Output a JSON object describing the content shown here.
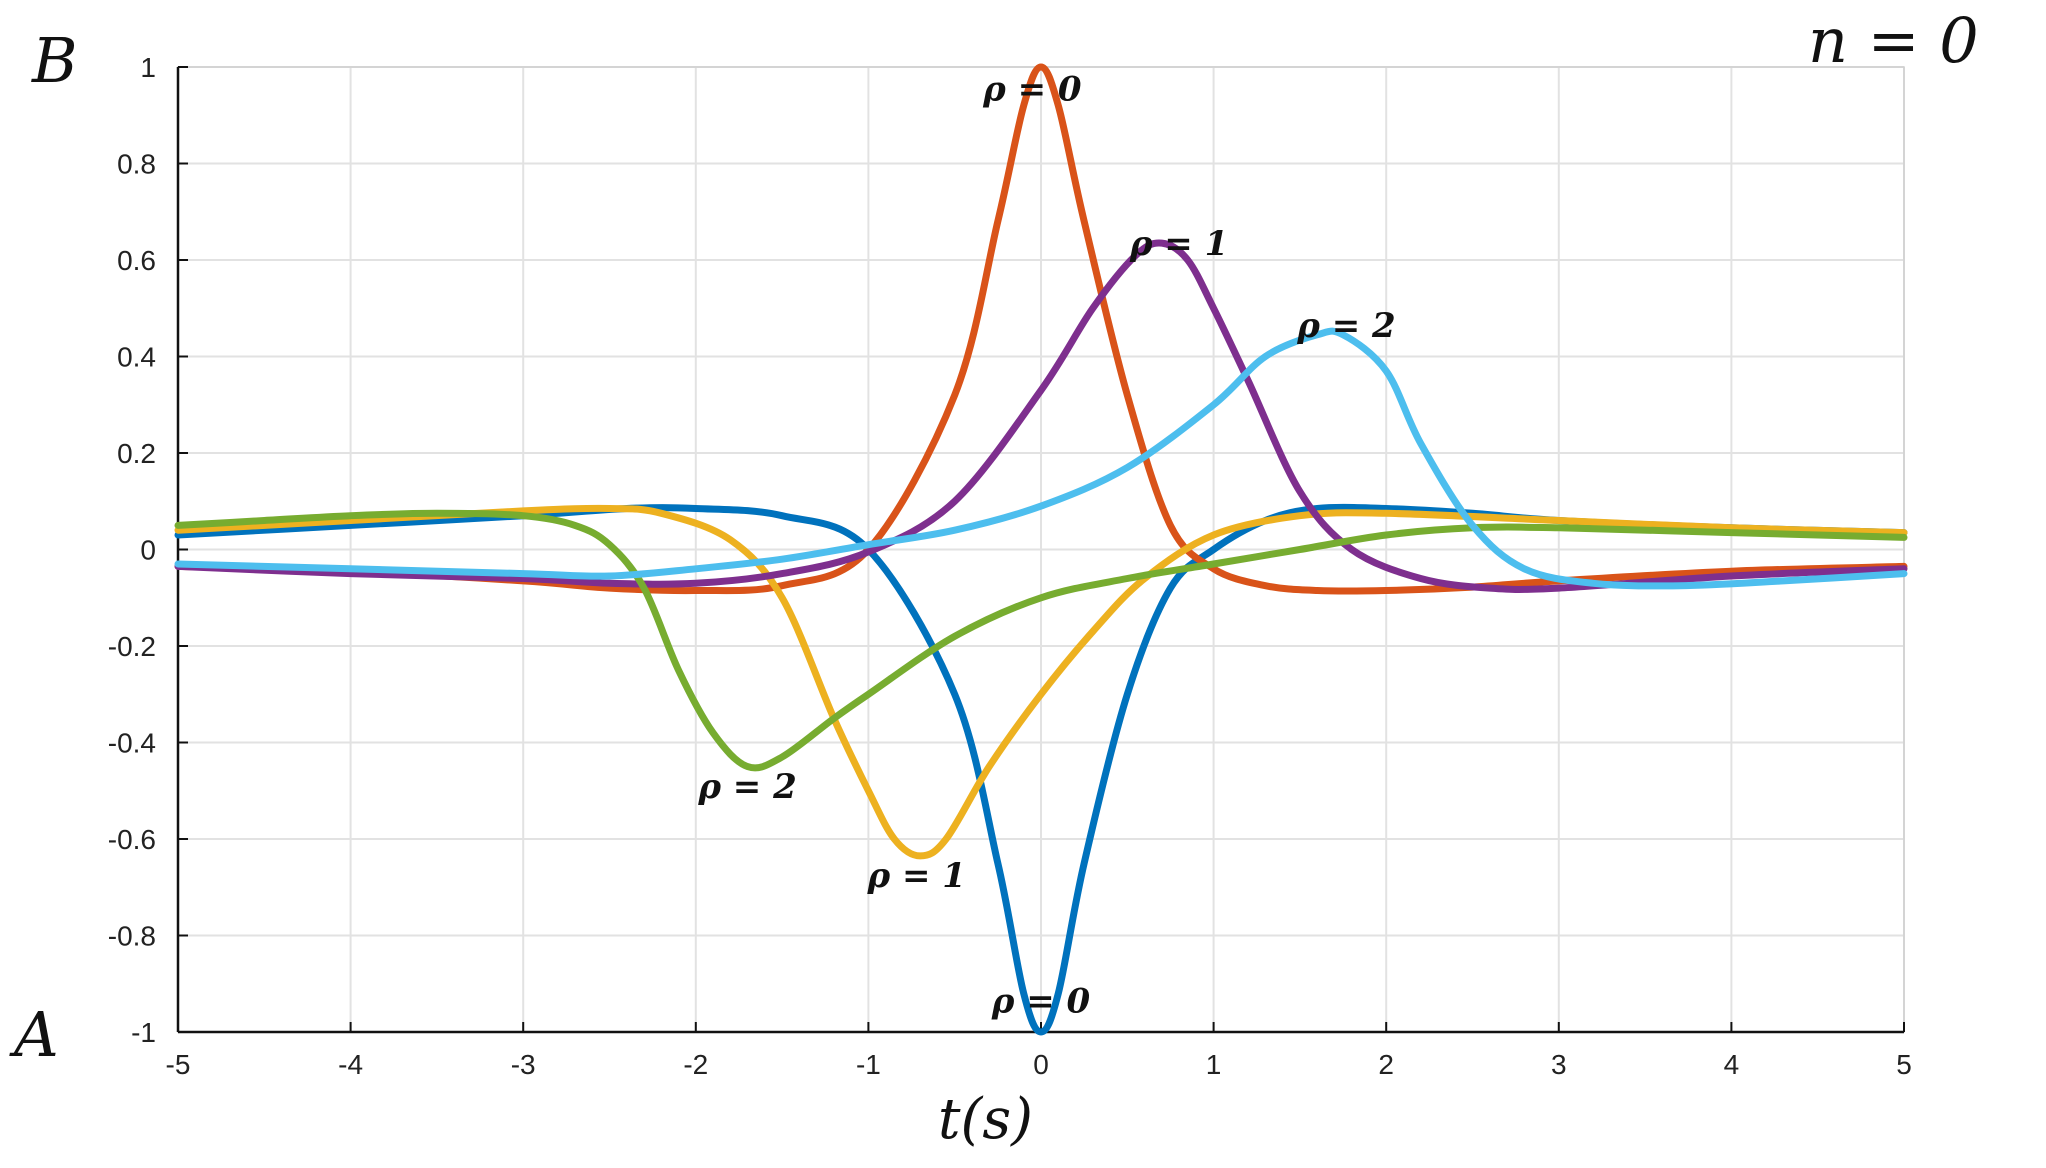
{
  "chart_data": {
    "type": "line",
    "title": "n = 0",
    "xlabel": "t(s)",
    "ylabel_top": "B",
    "ylabel_bottom": "A",
    "xlim": [
      -5,
      5
    ],
    "ylim": [
      -1,
      1
    ],
    "x_ticks": [
      "-5",
      "-4",
      "-3",
      "-2",
      "-1",
      "0",
      "1",
      "2",
      "3",
      "4",
      "5"
    ],
    "y_ticks": [
      "1",
      "0.8",
      "0.6",
      "0.4",
      "0.2",
      "0",
      "-0.2",
      "-0.4",
      "-0.6",
      "-0.8",
      "-1"
    ],
    "grid": true,
    "series": [
      {
        "color": "#0072BD",
        "points": [
          [
            -5,
            0.03
          ],
          [
            -4,
            0.05
          ],
          [
            -3,
            0.07
          ],
          [
            -2.4,
            0.085
          ],
          [
            -2,
            0.085
          ],
          [
            -1.5,
            0.07
          ],
          [
            -1,
            0.0
          ],
          [
            -0.5,
            -0.3
          ],
          [
            -0.25,
            -0.65
          ],
          [
            -0.1,
            -0.92
          ],
          [
            0,
            -1.0
          ],
          [
            0.1,
            -0.92
          ],
          [
            0.25,
            -0.65
          ],
          [
            0.5,
            -0.3
          ],
          [
            0.75,
            -0.08
          ],
          [
            1,
            0.0
          ],
          [
            1.3,
            0.06
          ],
          [
            1.6,
            0.085
          ],
          [
            2,
            0.085
          ],
          [
            2.5,
            0.075
          ],
          [
            3,
            0.06
          ],
          [
            4,
            0.045
          ],
          [
            5,
            0.035
          ]
        ]
      },
      {
        "color": "#D95319",
        "points": [
          [
            -5,
            -0.035
          ],
          [
            -4,
            -0.045
          ],
          [
            -3,
            -0.065
          ],
          [
            -2.5,
            -0.08
          ],
          [
            -2,
            -0.085
          ],
          [
            -1.5,
            -0.075
          ],
          [
            -1,
            0.0
          ],
          [
            -0.5,
            0.32
          ],
          [
            -0.25,
            0.68
          ],
          [
            -0.1,
            0.92
          ],
          [
            0,
            1.0
          ],
          [
            0.1,
            0.92
          ],
          [
            0.25,
            0.68
          ],
          [
            0.5,
            0.32
          ],
          [
            0.75,
            0.05
          ],
          [
            1,
            -0.04
          ],
          [
            1.3,
            -0.075
          ],
          [
            1.6,
            -0.085
          ],
          [
            2,
            -0.085
          ],
          [
            2.5,
            -0.078
          ],
          [
            3,
            -0.065
          ],
          [
            4,
            -0.045
          ],
          [
            5,
            -0.035
          ]
        ]
      },
      {
        "color": "#EDB120",
        "points": [
          [
            -5,
            0.04
          ],
          [
            -4,
            0.06
          ],
          [
            -3,
            0.08
          ],
          [
            -2.5,
            0.085
          ],
          [
            -2.2,
            0.075
          ],
          [
            -1.8,
            0.02
          ],
          [
            -1.5,
            -0.1
          ],
          [
            -1.2,
            -0.35
          ],
          [
            -1,
            -0.5
          ],
          [
            -0.85,
            -0.6
          ],
          [
            -0.7,
            -0.635
          ],
          [
            -0.55,
            -0.6
          ],
          [
            -0.3,
            -0.45
          ],
          [
            0,
            -0.3
          ],
          [
            0.3,
            -0.17
          ],
          [
            0.6,
            -0.06
          ],
          [
            1,
            0.03
          ],
          [
            1.5,
            0.07
          ],
          [
            2,
            0.075
          ],
          [
            3,
            0.06
          ],
          [
            4,
            0.045
          ],
          [
            5,
            0.035
          ]
        ]
      },
      {
        "color": "#7E2F8E",
        "points": [
          [
            -5,
            -0.035
          ],
          [
            -4,
            -0.05
          ],
          [
            -3,
            -0.06
          ],
          [
            -2.5,
            -0.07
          ],
          [
            -2,
            -0.07
          ],
          [
            -1.5,
            -0.05
          ],
          [
            -1,
            -0.005
          ],
          [
            -0.5,
            0.1
          ],
          [
            0,
            0.33
          ],
          [
            0.3,
            0.5
          ],
          [
            0.55,
            0.61
          ],
          [
            0.7,
            0.635
          ],
          [
            0.85,
            0.6
          ],
          [
            1,
            0.5
          ],
          [
            1.2,
            0.35
          ],
          [
            1.5,
            0.12
          ],
          [
            1.8,
            0.0
          ],
          [
            2.2,
            -0.06
          ],
          [
            2.6,
            -0.08
          ],
          [
            3,
            -0.08
          ],
          [
            4,
            -0.055
          ],
          [
            5,
            -0.04
          ]
        ]
      },
      {
        "color": "#77AC30",
        "points": [
          [
            -5,
            0.05
          ],
          [
            -4.5,
            0.06
          ],
          [
            -4,
            0.07
          ],
          [
            -3.5,
            0.075
          ],
          [
            -3,
            0.07
          ],
          [
            -2.7,
            0.05
          ],
          [
            -2.5,
            0.01
          ],
          [
            -2.3,
            -0.08
          ],
          [
            -2.1,
            -0.25
          ],
          [
            -1.9,
            -0.38
          ],
          [
            -1.7,
            -0.45
          ],
          [
            -1.5,
            -0.43
          ],
          [
            -1.2,
            -0.35
          ],
          [
            -1,
            -0.3
          ],
          [
            -0.5,
            -0.18
          ],
          [
            0,
            -0.1
          ],
          [
            0.5,
            -0.06
          ],
          [
            1,
            -0.03
          ],
          [
            1.5,
            0.0
          ],
          [
            2,
            0.03
          ],
          [
            2.5,
            0.045
          ],
          [
            3,
            0.045
          ],
          [
            4,
            0.035
          ],
          [
            5,
            0.025
          ]
        ]
      },
      {
        "color": "#4DBEEE",
        "points": [
          [
            -5,
            -0.03
          ],
          [
            -4,
            -0.04
          ],
          [
            -3,
            -0.05
          ],
          [
            -2.5,
            -0.055
          ],
          [
            -2,
            -0.04
          ],
          [
            -1.5,
            -0.02
          ],
          [
            -1,
            0.01
          ],
          [
            -0.5,
            0.04
          ],
          [
            0,
            0.09
          ],
          [
            0.5,
            0.17
          ],
          [
            1,
            0.3
          ],
          [
            1.3,
            0.4
          ],
          [
            1.6,
            0.445
          ],
          [
            1.75,
            0.445
          ],
          [
            2,
            0.37
          ],
          [
            2.2,
            0.22
          ],
          [
            2.5,
            0.05
          ],
          [
            2.8,
            -0.04
          ],
          [
            3.2,
            -0.07
          ],
          [
            3.7,
            -0.075
          ],
          [
            4.3,
            -0.065
          ],
          [
            5,
            -0.05
          ]
        ]
      }
    ],
    "annotations": [
      {
        "text": "ρ = 0",
        "x": -0.05,
        "y": 0.955
      },
      {
        "text": "ρ = 1",
        "x": 0.8,
        "y": 0.635
      },
      {
        "text": "ρ = 2",
        "x": 1.77,
        "y": 0.465
      },
      {
        "text": "ρ = 2",
        "x": -1.7,
        "y": -0.49
      },
      {
        "text": "ρ = 1",
        "x": -0.72,
        "y": -0.675
      },
      {
        "text": "ρ = 0",
        "x": 0.0,
        "y": -0.935
      }
    ]
  }
}
